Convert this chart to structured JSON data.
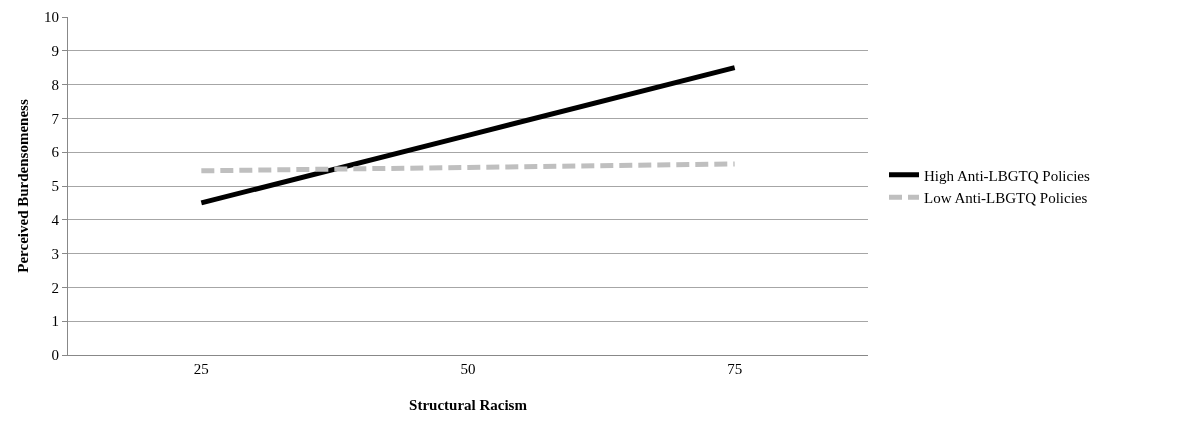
{
  "chart_data": {
    "type": "line",
    "xlabel": "Structural Racism",
    "ylabel": "Perceived Burdensomeness",
    "categories": [
      "25",
      "50",
      "75"
    ],
    "series": [
      {
        "name": "High Anti-LBGTQ Policies",
        "color": "#000000",
        "values": [
          4.5,
          6.5,
          8.5
        ],
        "line_style": "solid"
      },
      {
        "name": "Low Anti-LBGTQ Policies",
        "color": "#bfbfbf",
        "values": [
          5.45,
          5.55,
          5.65
        ],
        "line_style": "dashed"
      }
    ],
    "ylim": [
      0,
      10
    ],
    "yticks": [
      0,
      1,
      2,
      3,
      4,
      5,
      6,
      7,
      8,
      9,
      10
    ],
    "grid": "y",
    "legend": "right",
    "marker": "none"
  }
}
